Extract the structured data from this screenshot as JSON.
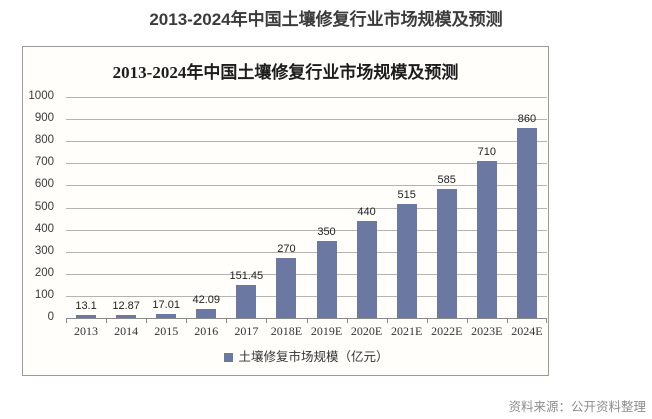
{
  "page": {
    "title": "2013-2024年中国土壤修复行业市场规模及预测",
    "source_note": "资料来源：公开资料整理"
  },
  "chart_data": {
    "type": "bar",
    "title": "2013-2024年中国土壤修复行业市场规模及预测",
    "categories": [
      "2013",
      "2014",
      "2015",
      "2016",
      "2017",
      "2018E",
      "2019E",
      "2020E",
      "2021E",
      "2022E",
      "2023E",
      "2024E"
    ],
    "values": [
      13.1,
      12.87,
      17.01,
      42.09,
      151.45,
      270,
      350,
      440,
      515,
      585,
      710,
      860
    ],
    "value_labels": [
      "13.1",
      "12.87",
      "17.01",
      "42.09",
      "151.45",
      "270",
      "350",
      "440",
      "515",
      "585",
      "710",
      "860"
    ],
    "legend": "土壤修复市场规模（亿元）",
    "xlabel": "",
    "ylabel": "",
    "ylim": [
      0,
      1000
    ],
    "yticks": [
      0,
      100,
      200,
      300,
      400,
      500,
      600,
      700,
      800,
      900,
      1000
    ],
    "grid": true,
    "legend_position": "bottom",
    "bar_color": "#6a78a2",
    "gridline_color": "#b3b3b3",
    "axis_color": "#8a8a8a"
  }
}
